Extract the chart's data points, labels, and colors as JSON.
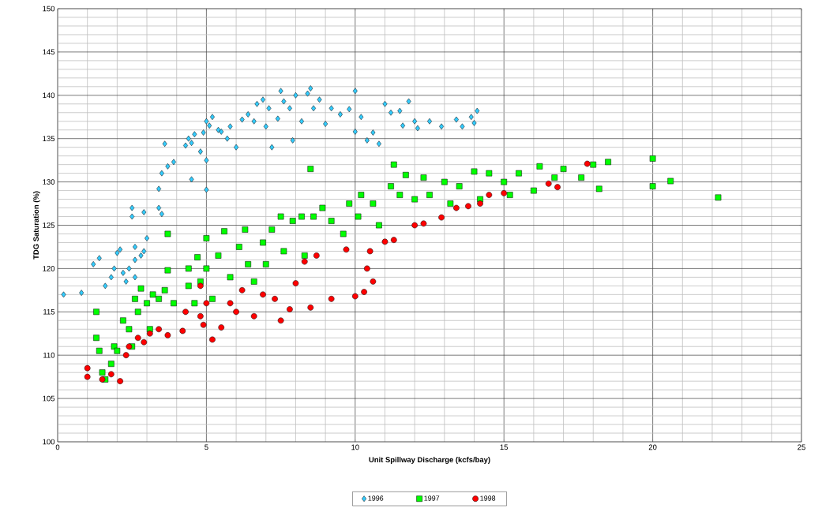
{
  "chart_data": {
    "type": "scatter",
    "xlabel": "Unit Spillway Discharge (kcfs/bay)",
    "ylabel": "TDG Saturation (%)",
    "xlim": [
      0,
      25
    ],
    "ylim": [
      100,
      150
    ],
    "xticks": [
      0,
      5,
      10,
      15,
      20,
      25
    ],
    "yticks": [
      100,
      105,
      110,
      115,
      120,
      125,
      130,
      135,
      140,
      145,
      150
    ],
    "grid": true,
    "legend": "bottom",
    "series": [
      {
        "name": "1996",
        "color": "#33ccff",
        "marker": "diamond",
        "x": [
          0.2,
          0.8,
          1.2,
          1.4,
          1.6,
          1.8,
          1.9,
          2.0,
          2.1,
          2.2,
          2.3,
          2.4,
          2.5,
          2.5,
          2.6,
          2.6,
          2.6,
          2.8,
          2.9,
          3.0,
          2.9,
          3.4,
          3.5,
          3.4,
          3.5,
          3.6,
          3.7,
          3.9,
          4.3,
          4.4,
          4.5,
          4.5,
          4.6,
          4.8,
          4.9,
          5.0,
          5.0,
          5.0,
          5.1,
          5.2,
          5.4,
          5.5,
          5.7,
          5.8,
          6.0,
          6.2,
          6.4,
          6.6,
          6.7,
          6.9,
          7.0,
          7.1,
          7.2,
          7.4,
          7.5,
          7.6,
          7.8,
          7.9,
          8.0,
          8.2,
          8.4,
          8.5,
          8.6,
          8.8,
          9.0,
          9.2,
          9.5,
          9.8,
          10.0,
          10.0,
          10.2,
          10.4,
          10.6,
          10.8,
          11.0,
          11.2,
          11.5,
          11.6,
          11.8,
          12.0,
          12.1,
          12.5,
          12.9,
          13.4,
          13.6,
          13.9,
          14.1,
          14.0
        ],
        "values": [
          117,
          117.2,
          120.5,
          121.2,
          118,
          119,
          120,
          121.8,
          122.2,
          119.5,
          118.5,
          120,
          127,
          126,
          122.5,
          121,
          119,
          121.5,
          122,
          123.5,
          126.5,
          127,
          126.3,
          129.2,
          131,
          134.4,
          131.8,
          132.3,
          134.2,
          135,
          130.3,
          134.5,
          135.5,
          133.5,
          135.7,
          137,
          132.5,
          129.1,
          136.5,
          137.5,
          136,
          135.8,
          135,
          136.4,
          134,
          137.2,
          137.8,
          137,
          139,
          139.5,
          136.4,
          138.5,
          134,
          137.3,
          140.5,
          139.3,
          138.5,
          134.8,
          140,
          137,
          140.2,
          140.8,
          138.5,
          139.5,
          136.7,
          138.5,
          137.8,
          138.4,
          140.5,
          135.8,
          137.5,
          134.8,
          135.7,
          134.4,
          139,
          138,
          138.2,
          136.5,
          139.3,
          137,
          136.2,
          137,
          136.4,
          137.2,
          136.4,
          137.5,
          138.2,
          136.8
        ]
      },
      {
        "name": "1997",
        "color": "#00ff00",
        "marker": "square",
        "x": [
          1.3,
          1.3,
          1.4,
          1.5,
          1.6,
          1.8,
          1.9,
          2.0,
          2.2,
          2.4,
          2.5,
          2.6,
          2.7,
          2.8,
          3.0,
          3.2,
          3.1,
          3.4,
          3.6,
          3.7,
          3.7,
          3.9,
          4.4,
          4.4,
          4.6,
          4.7,
          4.8,
          5.0,
          5.0,
          5.2,
          5.4,
          5.6,
          5.8,
          6.1,
          6.3,
          6.4,
          6.6,
          6.9,
          7.0,
          7.2,
          7.5,
          7.6,
          7.9,
          8.2,
          8.3,
          8.5,
          8.6,
          8.9,
          9.2,
          9.6,
          9.8,
          10.1,
          10.2,
          10.6,
          10.8,
          11.2,
          11.3,
          11.5,
          11.7,
          12.0,
          12.3,
          12.5,
          13.0,
          13.2,
          13.5,
          14.0,
          14.2,
          14.5,
          15.0,
          15.2,
          15.5,
          16.0,
          16.2,
          16.7,
          17.0,
          17.6,
          18.0,
          18.2,
          18.5,
          20.0,
          20.0,
          20.6,
          22.2
        ],
        "values": [
          115,
          112,
          110.5,
          108,
          107.2,
          109,
          111,
          110.5,
          114,
          113,
          111,
          116.5,
          115,
          117.7,
          116,
          117,
          113,
          116.5,
          117.5,
          119.8,
          124,
          116,
          118,
          120,
          116,
          121.3,
          118.5,
          123.5,
          120,
          116.5,
          121.5,
          124.3,
          119,
          122.5,
          124.5,
          120.5,
          118.5,
          123,
          120.5,
          124.5,
          126,
          122,
          125.5,
          126,
          121.5,
          131.5,
          126,
          127,
          125.5,
          124,
          127.5,
          126,
          128.5,
          127.5,
          125,
          129.5,
          132,
          128.5,
          130.8,
          128,
          130.5,
          128.5,
          130,
          127.5,
          129.5,
          131.2,
          128,
          131,
          130,
          128.5,
          131,
          129,
          131.8,
          130.5,
          131.5,
          130.5,
          132,
          129.2,
          132.3,
          132.7,
          129.5,
          130.1,
          128.2
        ]
      },
      {
        "name": "1998",
        "color": "#ff0000",
        "marker": "circle",
        "x": [
          1.0,
          1.0,
          1.5,
          1.8,
          2.1,
          2.3,
          2.4,
          2.7,
          2.9,
          3.1,
          3.4,
          3.7,
          4.2,
          4.3,
          4.8,
          4.8,
          4.9,
          5.0,
          5.2,
          5.5,
          5.8,
          6.0,
          6.2,
          6.6,
          6.9,
          7.3,
          7.5,
          7.8,
          8.0,
          8.3,
          8.7,
          8.5,
          9.2,
          9.7,
          10.0,
          10.3,
          10.4,
          10.5,
          10.6,
          11.0,
          11.3,
          12.0,
          12.3,
          12.9,
          13.4,
          13.8,
          14.2,
          14.5,
          15.0,
          16.5,
          16.8,
          17.8
        ],
        "values": [
          108.5,
          107.5,
          107.2,
          107.8,
          107,
          110,
          111,
          112,
          111.5,
          112.5,
          113,
          112.3,
          112.8,
          115,
          114.5,
          118,
          113.5,
          116,
          111.8,
          113.2,
          116,
          115,
          117.5,
          114.5,
          117,
          116.5,
          114,
          115.3,
          118.3,
          120.8,
          121.5,
          115.5,
          116.5,
          122.2,
          116.8,
          117.3,
          120,
          122,
          118.5,
          123.1,
          123.3,
          125,
          125.2,
          125.9,
          127,
          127.2,
          127.5,
          128.5,
          128.7,
          129.8,
          129.4,
          132.1
        ]
      }
    ]
  }
}
